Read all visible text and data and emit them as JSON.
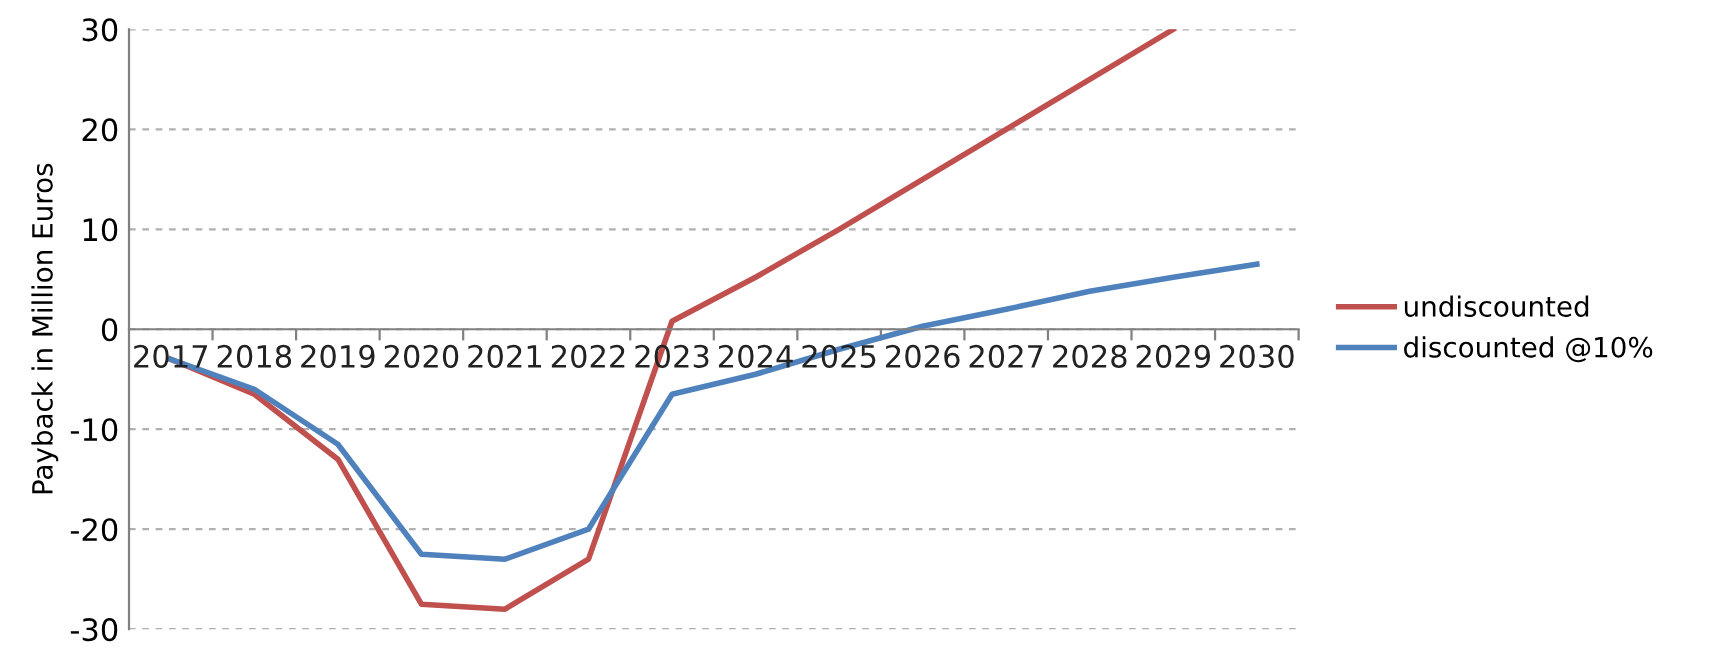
{
  "chart_data": {
    "type": "line",
    "ylabel": "Payback in Million Euros",
    "categories": [
      "2017",
      "2018",
      "2019",
      "2020",
      "2021",
      "2022",
      "2023",
      "2024",
      "2025",
      "2026",
      "2027",
      "2028",
      "2029",
      "2030"
    ],
    "series": [
      {
        "name": "undiscounted",
        "color": "#c0504d",
        "values": [
          -3,
          -6.5,
          -13,
          -27.5,
          -28,
          -23,
          0.8,
          5.2,
          10,
          15,
          20,
          25,
          30,
          null
        ]
      },
      {
        "name": "discounted @10%",
        "color": "#4f81bd",
        "values": [
          -3,
          -6,
          -11.5,
          -22.5,
          -23,
          -20,
          -6.5,
          -4.5,
          -2,
          0.3,
          2,
          3.8,
          5.2,
          6.5
        ]
      }
    ],
    "ylim": [
      -30,
      30
    ],
    "yticks": [
      -30,
      -20,
      -10,
      0,
      10,
      20,
      30
    ],
    "grid": "y",
    "legend": "right",
    "marker": "none",
    "line_style": "solid"
  }
}
